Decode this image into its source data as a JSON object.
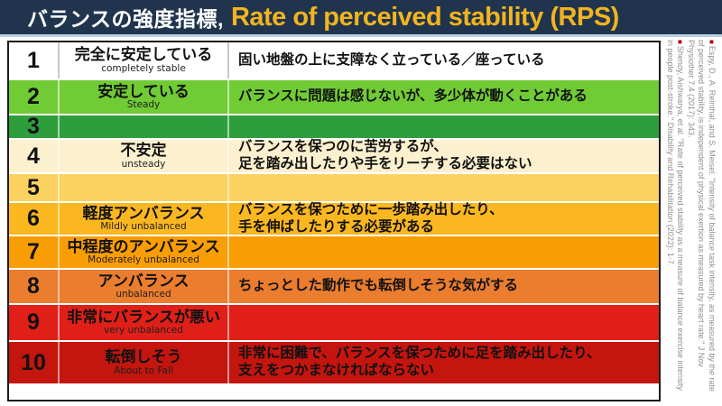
{
  "header": {
    "title_jp": "バランスの強度指標,",
    "title_en": "Rate of perceived stability (RPS)"
  },
  "colors": {
    "header_bg": "#20344e",
    "header_title_jp": "#ffffff",
    "header_title_en": "#f2b41f",
    "header_underline": "#b9cfe6",
    "table_border": "#1c1c1c",
    "citation_text": "#8f8f8f",
    "citation_bullet": "#b30000"
  },
  "table": {
    "rows": [
      {
        "score": "1",
        "label_jp": "完全に安定している",
        "label_en": "completely stable",
        "desc": "固い地盤の上に支障なく立っている／座っている",
        "color": "#ffffff"
      },
      {
        "score": "2",
        "label_jp": "安定している",
        "label_en": "Steady",
        "desc": "バランスに問題は感じないが、多少体が動くことがある",
        "color": "#71cb35"
      },
      {
        "score": "3",
        "label_jp": "",
        "label_en": "",
        "desc": "",
        "color": "#2e9e3c"
      },
      {
        "score": "4",
        "label_jp": "不安定",
        "label_en": "unsteady",
        "desc": "バランスを保つのに苦労するが、\n足を踏み出したりや手をリーチする必要はない",
        "color": "#fcf0cf"
      },
      {
        "score": "5",
        "label_jp": "",
        "label_en": "",
        "desc": "",
        "color": "#fbd262"
      },
      {
        "score": "6",
        "label_jp": "軽度アンバランス",
        "label_en": "Mildly unbalanced",
        "desc": "バランスを保つために一歩踏み出したり、\n手を伸ばしたりする必要がある",
        "color": "#fbb71f"
      },
      {
        "score": "7",
        "label_jp": "中程度のアンバランス",
        "label_en": "Moderately unbalanced",
        "desc": "",
        "color": "#f99d05"
      },
      {
        "score": "8",
        "label_jp": "アンバランス",
        "label_en": "unbalanced",
        "desc": "ちょっとした動作でも転倒しそうな気がする",
        "color": "#eb7d2e"
      },
      {
        "score": "9",
        "label_jp": "非常にバランスが悪い",
        "label_en": "very unbalanced",
        "desc": "",
        "color": "#e02018"
      },
      {
        "score": "10",
        "label_jp": "転倒しそう",
        "label_en": "About to Fall",
        "desc": "非常に困難で、バランスを保つために足を踏み出したり、\n支えをつかまなければならない",
        "color": "#c4150f"
      }
    ]
  },
  "citations": [
    "Espy, D., A. Reinthal, and S. Meisel. \"Intensity of balance task intensity, as measured by the rate of perceived stability, is independent of physical exertion as measured by heart rate.\" J Nov Physiother 7.4 (2017): 343.",
    "Shenoy, Aishwarya, et al. \"Rate of perceived stability as a measure of balance exercise intensity in people post-stroke.\" Disability and Rehabilitation (2022): 1-7."
  ]
}
